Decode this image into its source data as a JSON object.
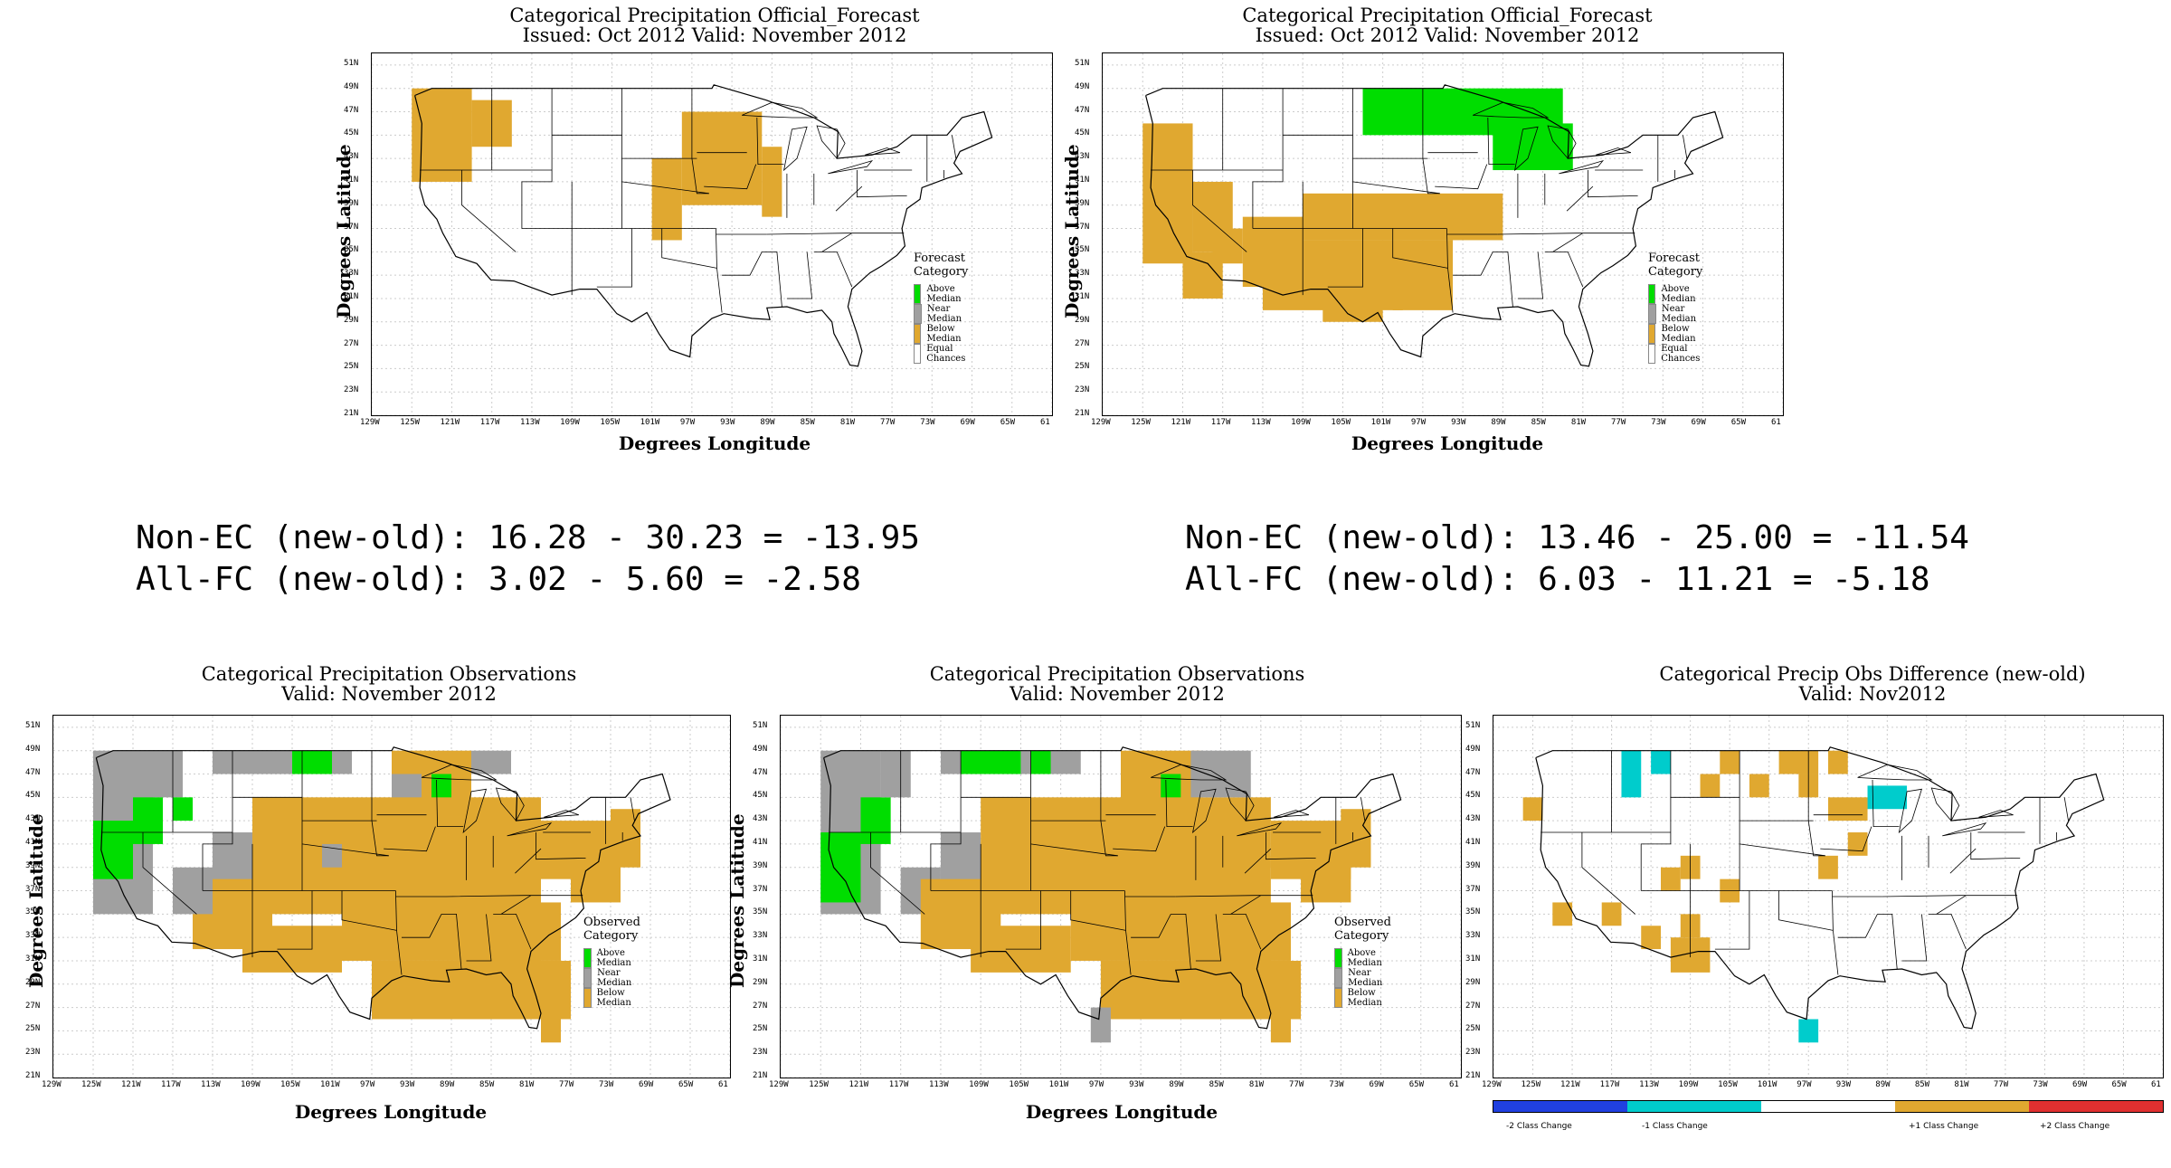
{
  "colors": {
    "above": "#00dd00",
    "near": "#a0a0a0",
    "below": "#e0a830",
    "equal": "#ffffff",
    "cyan": "#00cccc",
    "blue": "#2040e0",
    "red": "#e03030"
  },
  "axes": {
    "lat_ticks": [
      "51N",
      "49N",
      "47N",
      "45N",
      "43N",
      "41N",
      "39N",
      "37N",
      "35N",
      "33N",
      "31N",
      "29N",
      "27N",
      "25N",
      "23N",
      "21N"
    ],
    "lon_ticks": [
      "129W",
      "125W",
      "121W",
      "117W",
      "113W",
      "109W",
      "105W",
      "101W",
      "97W",
      "93W",
      "89W",
      "85W",
      "81W",
      "77W",
      "73W",
      "69W",
      "65W",
      "61"
    ],
    "ylabel": "Degrees Latitude",
    "xlabel": "Degrees Longitude"
  },
  "panels": [
    {
      "id": "fc-old",
      "title_line1": "Categorical Precipitation Official_Forecast",
      "title_line2": "Issued: Oct 2012 Valid: November 2012",
      "legend_title": "Forecast Category",
      "legend": [
        "Above Median",
        "Near Median",
        "Below Median",
        "Equal Chances"
      ]
    },
    {
      "id": "fc-new",
      "title_line1": "Categorical Precipitation Official_Forecast",
      "title_line2": "Issued: Oct 2012 Valid: November 2012",
      "legend_title": "Forecast Category",
      "legend": [
        "Above Median",
        "Near Median",
        "Below Median",
        "Equal Chances"
      ]
    },
    {
      "id": "obs-old",
      "title_line1": "Categorical Precipitation Observations",
      "title_line2": "Valid: November 2012",
      "legend_title": "Observed Category",
      "legend": [
        "Above Median",
        "Near Median",
        "Below Median"
      ]
    },
    {
      "id": "obs-new",
      "title_line1": "Categorical Precipitation Observations",
      "title_line2": "Valid: November 2012",
      "legend_title": "Observed Category",
      "legend": [
        "Above Median",
        "Near Median",
        "Below Median"
      ]
    },
    {
      "id": "obs-diff",
      "title_line1": "Categorical Precip Obs Difference (new-old)",
      "title_line2": "Valid: Nov2012"
    }
  ],
  "stats": {
    "left_line1": "Non-EC (new-old): 16.28 - 30.23 = -13.95",
    "left_line2": "All-FC (new-old): 3.02 - 5.60 = -2.58",
    "right_line1": "Non-EC (new-old): 13.46 - 25.00 = -11.54",
    "right_line2": "All-FC (new-old): 6.03 - 11.21 = -5.18"
  },
  "diff_colorbar": [
    "-2 Class Change",
    "-1 Class Change",
    "+1 Class Change",
    "+2 Class Change"
  ]
}
